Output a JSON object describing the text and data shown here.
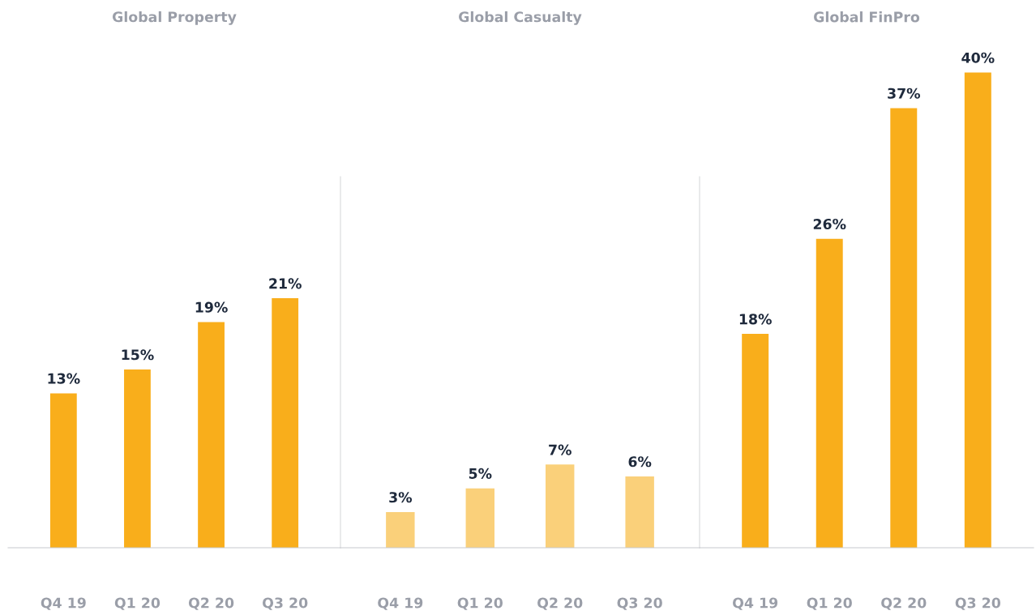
{
  "chart_data": [
    {
      "type": "bar",
      "title": "Global Property",
      "categories": [
        "Q4 19",
        "Q1 20",
        "Q2 20",
        "Q3 20"
      ],
      "values": [
        13,
        15,
        19,
        21
      ],
      "value_labels": [
        "13%",
        "15%",
        "19%",
        "21%"
      ],
      "color": "#f9ae1b"
    },
    {
      "type": "bar",
      "title": "Global Casualty",
      "categories": [
        "Q4 19",
        "Q1 20",
        "Q2 20",
        "Q3 20"
      ],
      "values": [
        3,
        5,
        7,
        6
      ],
      "value_labels": [
        "3%",
        "5%",
        "7%",
        "6%"
      ],
      "color": "#fad07a"
    },
    {
      "type": "bar",
      "title": "Global FinPro",
      "categories": [
        "Q4 19",
        "Q1 20",
        "Q2 20",
        "Q3 20"
      ],
      "values": [
        18,
        26,
        37,
        40
      ],
      "value_labels": [
        "18%",
        "26%",
        "37%",
        "40%"
      ],
      "color": "#f9ae1b"
    }
  ]
}
